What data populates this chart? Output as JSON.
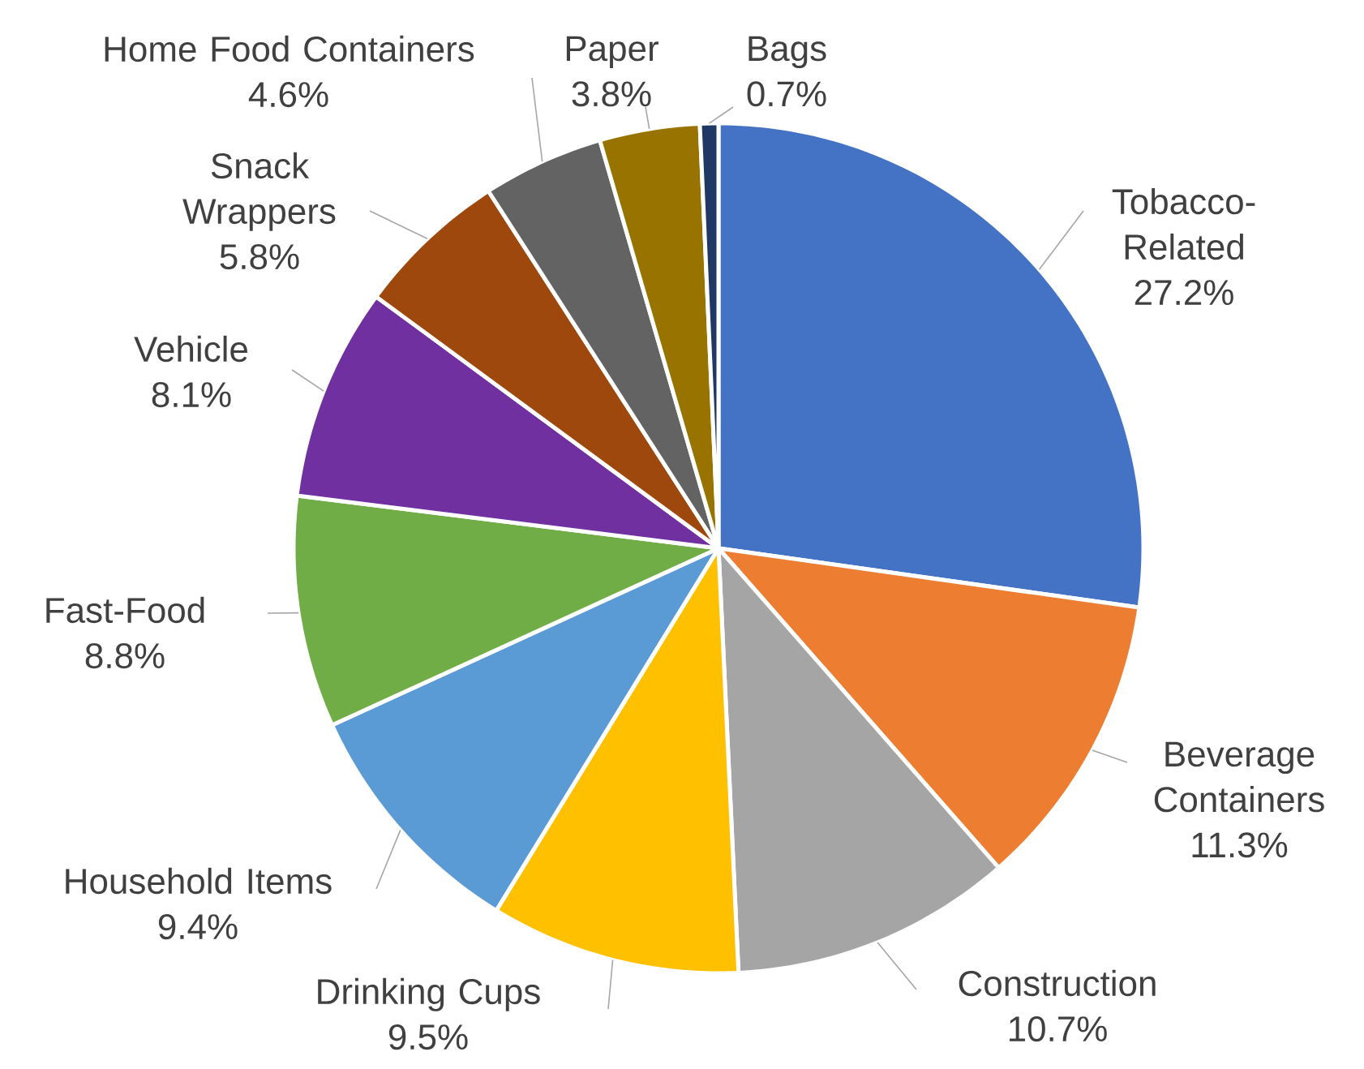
{
  "chart_data": {
    "type": "pie",
    "categories": [
      "Tobacco-Related",
      "Beverage Containers",
      "Construction",
      "Drinking Cups",
      "Household Items",
      "Fast-Food",
      "Vehicle",
      "Snack Wrappers",
      "Home Food Containers",
      "Paper",
      "Bags"
    ],
    "values": [
      27.2,
      11.3,
      10.7,
      9.5,
      9.4,
      8.8,
      8.1,
      5.8,
      4.6,
      3.8,
      0.7
    ],
    "value_labels": [
      "27.2%",
      "11.3%",
      "10.7%",
      "9.5%",
      "9.4%",
      "8.8%",
      "8.1%",
      "5.8%",
      "4.6%",
      "3.8%",
      "0.7%"
    ],
    "colors": [
      "#4472c4",
      "#ed7d31",
      "#a5a5a5",
      "#ffc000",
      "#5b9bd5",
      "#70ad47",
      "#7030a0",
      "#9e480e",
      "#636363",
      "#997300",
      "#1f3864"
    ]
  }
}
